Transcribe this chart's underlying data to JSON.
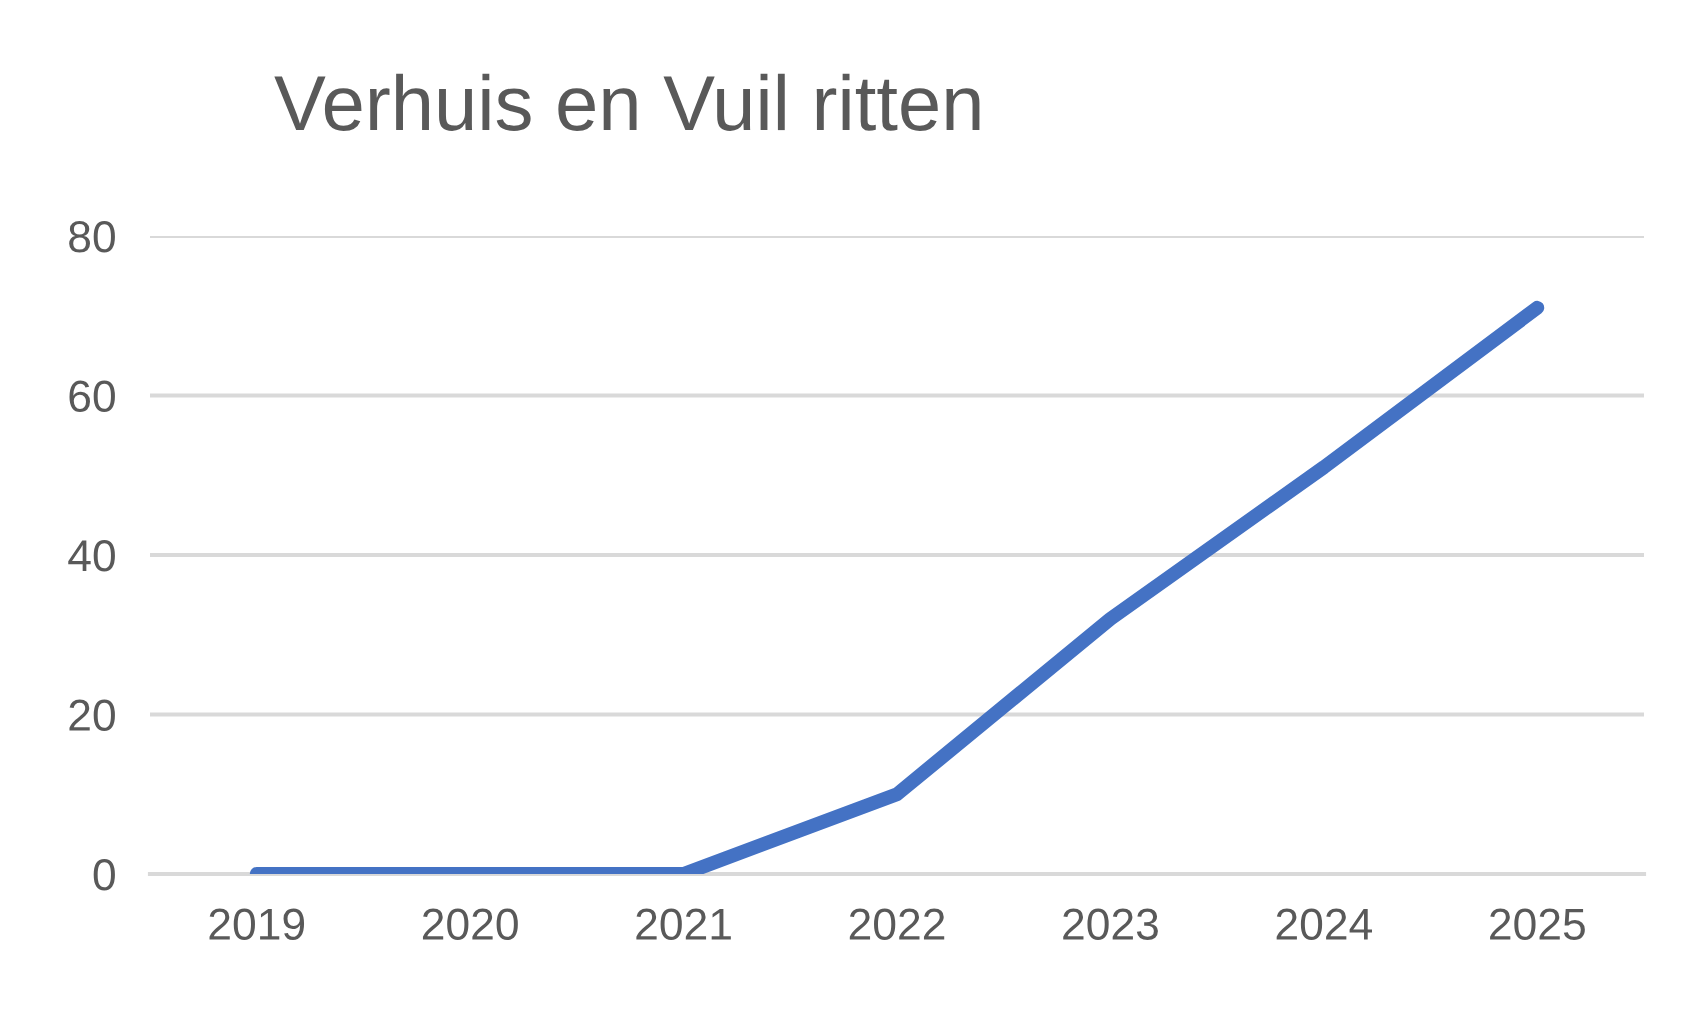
{
  "chart_data": {
    "type": "line",
    "title": "Verhuis en Vuil ritten",
    "categories": [
      "2019",
      "2020",
      "2021",
      "2022",
      "2023",
      "2024",
      "2025"
    ],
    "series": [
      {
        "color": "#4472c4",
        "values": [
          0,
          0,
          0,
          10,
          32,
          51,
          71
        ]
      }
    ],
    "ylim": [
      0,
      80
    ],
    "yticks": [
      0,
      20,
      40,
      60,
      80
    ],
    "grid": "y",
    "legend": false,
    "marker": "none",
    "line_style": "solid"
  }
}
